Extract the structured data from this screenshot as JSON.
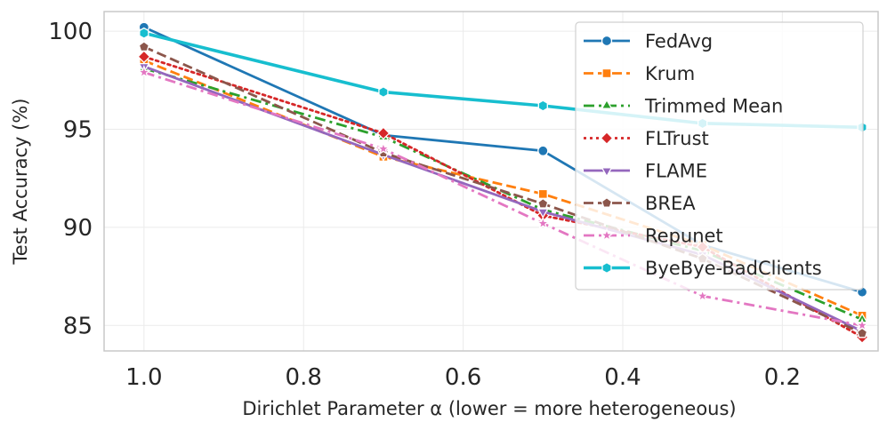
{
  "chart_data": {
    "type": "line",
    "title": "",
    "xlabel": "Dirichlet Parameter α (lower = more heterogeneous)",
    "ylabel": "Test Accuracy (%)",
    "xlim": [
      1.05,
      0.08
    ],
    "ylim": [
      83.7,
      101.0
    ],
    "x_ticks": [
      1.0,
      0.8,
      0.6,
      0.4,
      0.2
    ],
    "x_tick_labels": [
      "1.0",
      "0.8",
      "0.6",
      "0.4",
      "0.2"
    ],
    "y_ticks": [
      85,
      90,
      95,
      100
    ],
    "y_tick_labels": [
      "85",
      "90",
      "95",
      "100"
    ],
    "grid": true,
    "legend_position": "top-right",
    "x": [
      1.0,
      0.7,
      0.5,
      0.3,
      0.1
    ],
    "series": [
      {
        "name": "FedAvg",
        "values": [
          100.2,
          94.7,
          93.9,
          89.1,
          86.7
        ],
        "color": "#1f77b4",
        "dash": "solid",
        "marker": "circle"
      },
      {
        "name": "Krum",
        "values": [
          98.5,
          93.6,
          91.7,
          89.1,
          85.5
        ],
        "color": "#ff7f0e",
        "dash": "dashed",
        "marker": "square"
      },
      {
        "name": "Trimmed Mean",
        "values": [
          98.1,
          94.6,
          90.9,
          88.8,
          85.3
        ],
        "color": "#2ca02c",
        "dash": "dashdot",
        "marker": "triangle-up"
      },
      {
        "name": "FLTrust",
        "values": [
          98.7,
          94.8,
          90.6,
          89.0,
          84.4
        ],
        "color": "#d62728",
        "dash": "dotted",
        "marker": "diamond"
      },
      {
        "name": "FLAME",
        "values": [
          98.2,
          93.7,
          90.8,
          88.6,
          84.7
        ],
        "color": "#9467bd",
        "dash": "solid",
        "marker": "triangle-down"
      },
      {
        "name": "BREA",
        "values": [
          99.2,
          93.8,
          91.2,
          88.4,
          84.6
        ],
        "color": "#8c564b",
        "dash": "dashed",
        "marker": "pentagon"
      },
      {
        "name": "Repunet",
        "values": [
          97.9,
          94.0,
          90.2,
          86.5,
          85.0
        ],
        "color": "#e377c2",
        "dash": "dashdot",
        "marker": "star"
      },
      {
        "name": "ByeBye-BadClients",
        "values": [
          99.9,
          96.9,
          96.2,
          95.3,
          95.1
        ],
        "color": "#17becf",
        "dash": "solid",
        "marker": "hexagon"
      }
    ]
  }
}
